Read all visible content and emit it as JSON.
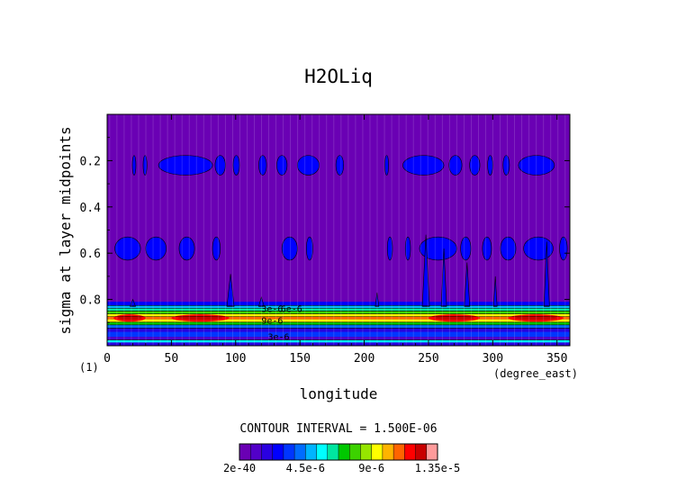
{
  "chart_data": {
    "type": "heatmap",
    "title": "H2OLiq",
    "xlabel": "longitude",
    "ylabel": "sigma at layer midpoints",
    "x_units": "(degree_east)",
    "corner_label": "(1)",
    "xlim": [
      0,
      360
    ],
    "ylim": [
      1.0,
      0.0
    ],
    "y_inverted": true,
    "x_ticks": [
      0,
      50,
      100,
      150,
      200,
      250,
      300,
      350
    ],
    "x_tick_labels": [
      "0",
      "50",
      "100",
      "150",
      "200",
      "250",
      "300",
      "350"
    ],
    "y_ticks": [
      0.2,
      0.4,
      0.6,
      0.8
    ],
    "y_tick_labels": [
      "0.2",
      "0.4",
      "0.6",
      "0.8"
    ],
    "grid": true,
    "contour_interval_text": "CONTOUR INTERVAL = 1.500E-06",
    "contour_interval": 1.5e-06,
    "colorbar": {
      "labels": [
        "2e-40",
        "4.5e-6",
        "9e-6",
        "1.35e-5"
      ],
      "colors": [
        "#6a00b4",
        "#5200c8",
        "#2a00e0",
        "#0000ff",
        "#0036ff",
        "#006cff",
        "#00b4ff",
        "#00ffff",
        "#00e6a0",
        "#00c800",
        "#3cd200",
        "#96e600",
        "#ffff00",
        "#ffb400",
        "#ff6400",
        "#ff0000",
        "#c80000",
        "#ff9b9b"
      ]
    },
    "background_level_color": "#6a00b4",
    "bands": [
      {
        "sigma": 0.22,
        "level": "~1.5e-6",
        "lon_ranges": [
          [
            20,
            22
          ],
          [
            28,
            31
          ],
          [
            40,
            82
          ],
          [
            84,
            92
          ],
          [
            98,
            103
          ],
          [
            118,
            124
          ],
          [
            132,
            140
          ],
          [
            148,
            165
          ],
          [
            178,
            184
          ],
          [
            216,
            219
          ],
          [
            230,
            262
          ],
          [
            266,
            276
          ],
          [
            282,
            290
          ],
          [
            296,
            300
          ],
          [
            308,
            313
          ],
          [
            320,
            348
          ]
        ]
      },
      {
        "sigma": 0.58,
        "level": "~1.5e-6",
        "lon_ranges": [
          [
            6,
            26
          ],
          [
            30,
            46
          ],
          [
            56,
            68
          ],
          [
            82,
            88
          ],
          [
            136,
            148
          ],
          [
            155,
            160
          ],
          [
            218,
            222
          ],
          [
            232,
            236
          ],
          [
            243,
            272
          ],
          [
            275,
            283
          ],
          [
            292,
            299
          ],
          [
            306,
            318
          ],
          [
            324,
            347
          ],
          [
            352,
            358
          ]
        ]
      },
      {
        "sigma": 0.89,
        "level": "up to ~1.35e-5",
        "lon_ranges": [
          [
            0,
            360
          ]
        ]
      },
      {
        "sigma": 0.95,
        "level": "~3e-6",
        "lon_ranges": [
          [
            0,
            360
          ]
        ]
      }
    ],
    "contour_labels": [
      "3e-6",
      "6e-6",
      "9e-6",
      "3e-6"
    ]
  }
}
